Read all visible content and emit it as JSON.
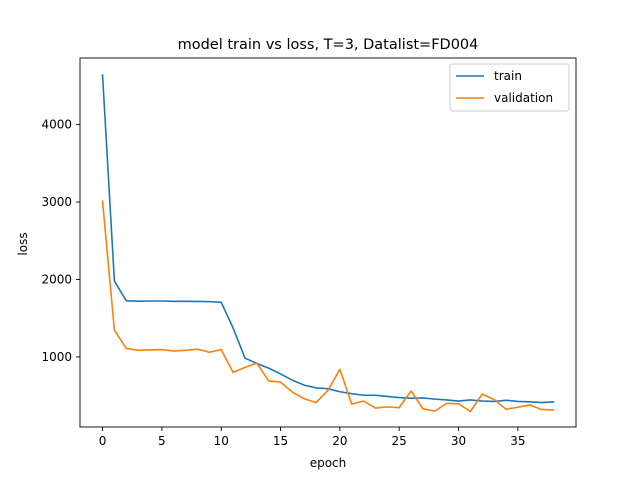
{
  "chart_data": {
    "type": "line",
    "title": "model train vs loss, T=3, Datalist=FD004",
    "xlabel": "epoch",
    "ylabel": "loss",
    "xlim": [
      -1.9,
      39.9
    ],
    "ylim": [
      95,
      4860
    ],
    "xticks": [
      0,
      5,
      10,
      15,
      20,
      25,
      30,
      35
    ],
    "yticks": [
      1000,
      2000,
      3000,
      4000
    ],
    "grid": false,
    "legend_position": "upper right",
    "x": [
      0,
      1,
      2,
      3,
      4,
      5,
      6,
      7,
      8,
      9,
      10,
      11,
      12,
      13,
      14,
      15,
      16,
      17,
      18,
      19,
      20,
      21,
      22,
      23,
      24,
      25,
      26,
      27,
      28,
      29,
      30,
      31,
      32,
      33,
      34,
      35,
      36,
      37,
      38
    ],
    "series": [
      {
        "name": "train",
        "color": "#1f77b4",
        "values": [
          4640,
          1980,
          1725,
          1720,
          1722,
          1722,
          1718,
          1718,
          1716,
          1714,
          1705,
          1375,
          985,
          915,
          855,
          780,
          700,
          635,
          600,
          590,
          550,
          525,
          505,
          505,
          490,
          475,
          465,
          470,
          455,
          445,
          430,
          445,
          430,
          425,
          440,
          425,
          420,
          410,
          420
        ]
      },
      {
        "name": "validation",
        "color": "#ff7f0e",
        "values": [
          3010,
          1345,
          1110,
          1085,
          1090,
          1095,
          1075,
          1085,
          1100,
          1060,
          1095,
          800,
          865,
          920,
          690,
          675,
          545,
          460,
          410,
          570,
          840,
          390,
          430,
          340,
          355,
          345,
          560,
          330,
          300,
          400,
          395,
          295,
          520,
          450,
          325,
          350,
          380,
          320,
          315
        ]
      }
    ]
  }
}
